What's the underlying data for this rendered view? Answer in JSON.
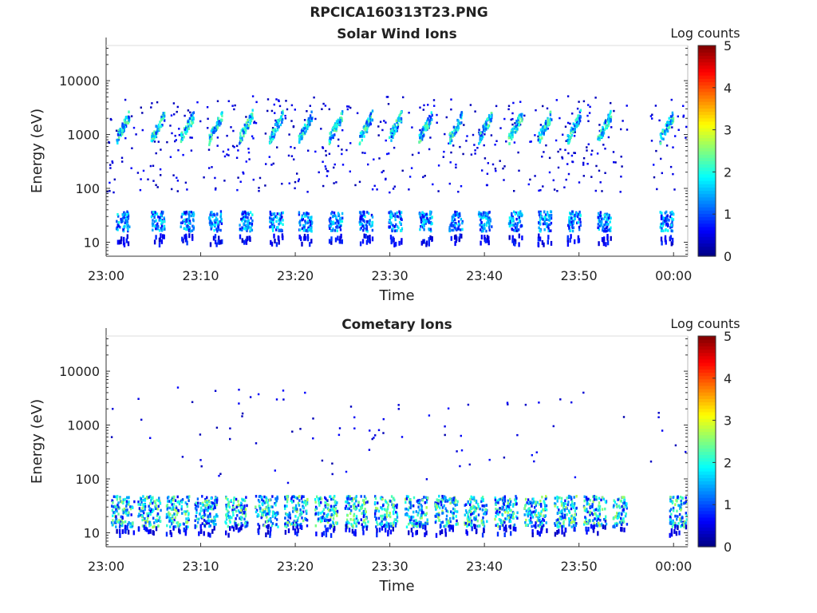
{
  "figure_title": "RPCICA160313T23.PNG",
  "chart_data": [
    {
      "type": "heatmap",
      "title": "Solar Wind Ions",
      "xlabel": "Time",
      "ylabel": "Energy (eV)",
      "x_ticks": [
        "23:00",
        "23:10",
        "23:20",
        "23:30",
        "23:40",
        "23:50",
        "00:00"
      ],
      "y_ticks": [
        "10",
        "100",
        "1000",
        "10000"
      ],
      "y_scale": "log",
      "ylim": [
        5.5,
        45000
      ],
      "xlim_minutes": [
        0,
        61.5
      ],
      "colorbar": {
        "label": "Log counts",
        "range": [
          0,
          5
        ],
        "ticks": [
          "0",
          "1",
          "2",
          "3",
          "4",
          "5"
        ],
        "colormap": "jet"
      },
      "sweep_minutes": [
        1.0,
        4.7,
        7.8,
        10.8,
        14.0,
        17.2,
        20.3,
        23.5,
        26.7,
        29.8,
        33.0,
        36.2,
        39.3,
        42.5,
        45.6,
        48.7,
        51.9,
        58.5
      ],
      "features": [
        {
          "name": "solar wind beam",
          "energy_range_eV": [
            600,
            2200
          ],
          "log_counts_range": [
            0.8,
            2.5
          ]
        },
        {
          "name": "low energy ions",
          "energy_range_eV": [
            15,
            35
          ],
          "log_counts_range": [
            0.5,
            2.0
          ]
        }
      ],
      "data_gap_minutes": [
        55,
        57.5
      ]
    },
    {
      "type": "heatmap",
      "title": "Cometary Ions",
      "xlabel": "Time",
      "ylabel": "Energy (eV)",
      "x_ticks": [
        "23:00",
        "23:10",
        "23:20",
        "23:30",
        "23:40",
        "23:50",
        "00:00"
      ],
      "y_ticks": [
        "10",
        "100",
        "1000",
        "10000"
      ],
      "y_scale": "log",
      "ylim": [
        5.5,
        45000
      ],
      "xlim_minutes": [
        0,
        61.5
      ],
      "colorbar": {
        "label": "Log counts",
        "range": [
          0,
          5
        ],
        "ticks": [
          "0",
          "1",
          "2",
          "3",
          "4",
          "5"
        ],
        "colormap": "jet"
      },
      "sweep_minutes": [
        0.5,
        3.3,
        6.3,
        9.3,
        12.5,
        15.7,
        18.8,
        22.0,
        25.2,
        28.3,
        31.5,
        34.7,
        37.8,
        41.0,
        44.1,
        47.3,
        50.4,
        53.5,
        59.5
      ],
      "features": [
        {
          "name": "cometary ions",
          "energy_range_eV": [
            12,
            45
          ],
          "log_counts_range": [
            0.5,
            2.8
          ]
        }
      ],
      "data_gap_minutes": [
        55,
        57.5
      ]
    }
  ]
}
